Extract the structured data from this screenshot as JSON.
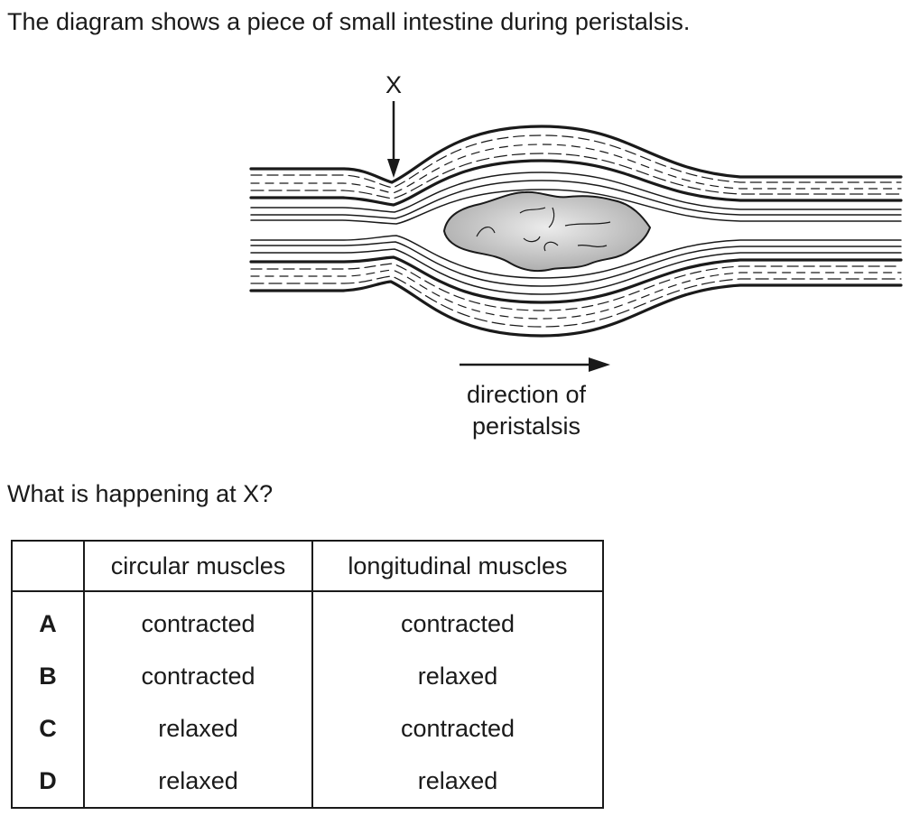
{
  "question": {
    "intro": "The diagram shows a piece of small intestine during peristalsis.",
    "prompt": "What is happening at X?"
  },
  "diagram": {
    "marker_label": "X",
    "direction_label_line1": "direction of",
    "direction_label_line2": "peristalsis",
    "icons": [
      "down-arrow-icon",
      "right-arrow-icon"
    ]
  },
  "table": {
    "headers": [
      "",
      "circular muscles",
      "longitudinal muscles"
    ],
    "rows": [
      {
        "key": "A",
        "circular": "contracted",
        "longitudinal": "contracted"
      },
      {
        "key": "B",
        "circular": "contracted",
        "longitudinal": "relaxed"
      },
      {
        "key": "C",
        "circular": "relaxed",
        "longitudinal": "contracted"
      },
      {
        "key": "D",
        "circular": "relaxed",
        "longitudinal": "relaxed"
      }
    ]
  }
}
